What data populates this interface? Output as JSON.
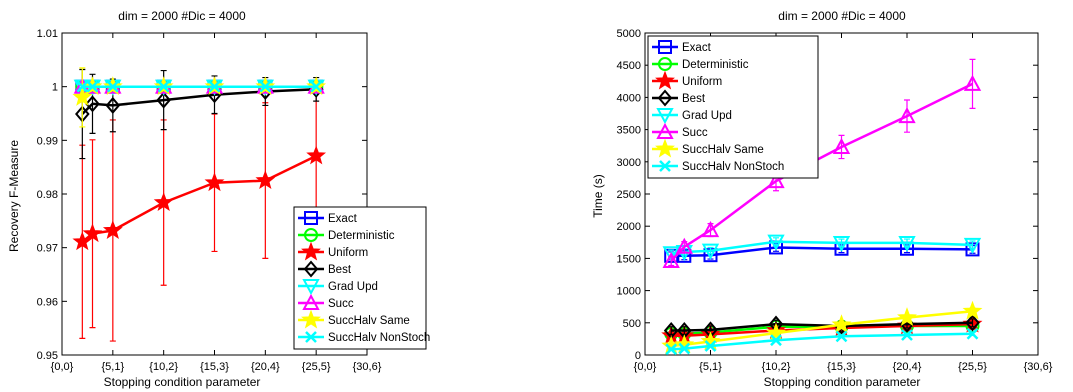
{
  "chart_data": [
    {
      "type": "line",
      "title": "dim = 2000  #Dic = 4000",
      "xlabel": "Stopping condition parameter",
      "ylabel": "Recovery F-Measure",
      "xlim": [
        0,
        30
      ],
      "ylim": [
        0.95,
        1.01
      ],
      "xtick_values": [
        0,
        5,
        10,
        15,
        20,
        25,
        30
      ],
      "xtick_labels": [
        "{0,0}",
        "{5,1}",
        "{10,2}",
        "{15,3}",
        "{20,4}",
        "{25,5}",
        "{30,6}"
      ],
      "ytick_values": [
        0.95,
        0.96,
        0.97,
        0.98,
        0.99,
        1,
        1.01
      ],
      "ytick_labels": [
        "0.95",
        "0.96",
        "0.97",
        "0.98",
        "0.99",
        "1",
        "1.01"
      ],
      "legend_position": "bottom-right",
      "grid": false,
      "x": [
        2,
        3,
        5,
        10,
        15,
        20,
        25
      ],
      "series": [
        {
          "name": "Exact",
          "color": "#0000ff",
          "marker": "square",
          "values": [
            1,
            1,
            1,
            1,
            1,
            1,
            1
          ],
          "err": [
            0,
            0,
            0,
            0,
            0,
            0,
            0
          ]
        },
        {
          "name": "Deterministic",
          "color": "#00ff00",
          "marker": "circle",
          "values": [
            1,
            1,
            1,
            1,
            1,
            1,
            1
          ],
          "err": [
            0,
            0,
            0,
            0,
            0,
            0,
            0
          ]
        },
        {
          "name": "Uniform",
          "color": "#ff0000",
          "marker": "star",
          "values": [
            0.9711,
            0.9726,
            0.9732,
            0.9784,
            0.9821,
            0.9825,
            0.9871
          ],
          "err": [
            0.018,
            0.0175,
            0.0206,
            0.0154,
            0.0128,
            0.0145,
            0.014
          ]
        },
        {
          "name": "Best",
          "color": "#000000",
          "marker": "diamond",
          "values": [
            0.9949,
            0.9968,
            0.9965,
            0.9975,
            0.9985,
            0.9991,
            0.9995
          ],
          "err": [
            0.0083,
            0.0055,
            0.0049,
            0.0055,
            0.0035,
            0.0026,
            0.0022
          ]
        },
        {
          "name": "Grad Upd",
          "color": "#00ffff",
          "marker": "triangle-down",
          "values": [
            1,
            1,
            1,
            1,
            1,
            1,
            1
          ],
          "err": [
            0,
            0,
            0,
            0,
            0,
            0,
            0
          ]
        },
        {
          "name": "Succ",
          "color": "#ff00ff",
          "marker": "triangle-up",
          "values": [
            1,
            1,
            1,
            1,
            1,
            1,
            1
          ],
          "err": [
            0,
            0,
            0,
            0,
            0,
            0,
            0
          ]
        },
        {
          "name": "SuccHalv Same",
          "color": "#ffff00",
          "marker": "star",
          "values": [
            0.998,
            1,
            1,
            1,
            1,
            1,
            1
          ],
          "err": [
            0.0055,
            0,
            0,
            0,
            0,
            0,
            0
          ]
        },
        {
          "name": "SuccHalv NonStoch",
          "color": "#00ffff",
          "marker": "x",
          "values": [
            1,
            1,
            1,
            1,
            1,
            1,
            1
          ],
          "err": [
            0,
            0,
            0,
            0,
            0,
            0,
            0
          ]
        }
      ]
    },
    {
      "type": "line",
      "title": "dim = 2000  #Dic = 4000",
      "xlabel": "Stopping condition parameter",
      "ylabel": "Time (s)",
      "xlim": [
        0,
        30
      ],
      "ylim": [
        0,
        5000
      ],
      "xtick_values": [
        0,
        5,
        10,
        15,
        20,
        25,
        30
      ],
      "xtick_labels": [
        "{0,0}",
        "{5,1}",
        "{10,2}",
        "{15,3}",
        "{20,4}",
        "{25,5}",
        "{30,6}"
      ],
      "ytick_values": [
        0,
        500,
        1000,
        1500,
        2000,
        2500,
        3000,
        3500,
        4000,
        4500,
        5000
      ],
      "ytick_labels": [
        "0",
        "500",
        "1000",
        "1500",
        "2000",
        "2500",
        "3000",
        "3500",
        "4000",
        "4500",
        "5000"
      ],
      "legend_position": "top-left",
      "grid": false,
      "x": [
        2,
        3,
        5,
        10,
        15,
        20,
        25
      ],
      "series": [
        {
          "name": "Exact",
          "color": "#0000ff",
          "marker": "square",
          "values": [
            1540,
            1540,
            1550,
            1670,
            1650,
            1650,
            1640
          ],
          "err": [
            60,
            60,
            60,
            60,
            60,
            60,
            60
          ]
        },
        {
          "name": "Deterministic",
          "color": "#00ff00",
          "marker": "circle",
          "values": [
            330,
            330,
            350,
            440,
            440,
            450,
            450
          ],
          "err": [
            30,
            30,
            30,
            30,
            30,
            30,
            30
          ]
        },
        {
          "name": "Uniform",
          "color": "#ff0000",
          "marker": "star",
          "values": [
            300,
            300,
            320,
            380,
            420,
            450,
            480
          ],
          "err": [
            30,
            30,
            30,
            30,
            30,
            30,
            30
          ]
        },
        {
          "name": "Best",
          "color": "#000000",
          "marker": "diamond",
          "values": [
            380,
            380,
            390,
            480,
            450,
            480,
            500
          ],
          "err": [
            60,
            60,
            60,
            60,
            60,
            60,
            60
          ]
        },
        {
          "name": "Grad Upd",
          "color": "#00ffff",
          "marker": "triangle-down",
          "values": [
            1580,
            1600,
            1620,
            1760,
            1740,
            1740,
            1710
          ],
          "err": [
            50,
            50,
            50,
            60,
            60,
            60,
            60
          ]
        },
        {
          "name": "Succ",
          "color": "#ff00ff",
          "marker": "triangle-up",
          "values": [
            1460,
            1680,
            1940,
            2700,
            3230,
            3710,
            4210
          ],
          "err": [
            70,
            80,
            100,
            150,
            180,
            250,
            380
          ]
        },
        {
          "name": "SuccHalv Same",
          "color": "#ffff00",
          "marker": "star",
          "values": [
            140,
            160,
            210,
            340,
            470,
            580,
            680
          ],
          "err": [
            20,
            20,
            20,
            30,
            40,
            40,
            50
          ]
        },
        {
          "name": "SuccHalv NonStoch",
          "color": "#00ffff",
          "marker": "x",
          "values": [
            90,
            100,
            140,
            230,
            290,
            310,
            330
          ],
          "err": [
            10,
            10,
            15,
            20,
            20,
            20,
            25
          ]
        }
      ]
    }
  ]
}
